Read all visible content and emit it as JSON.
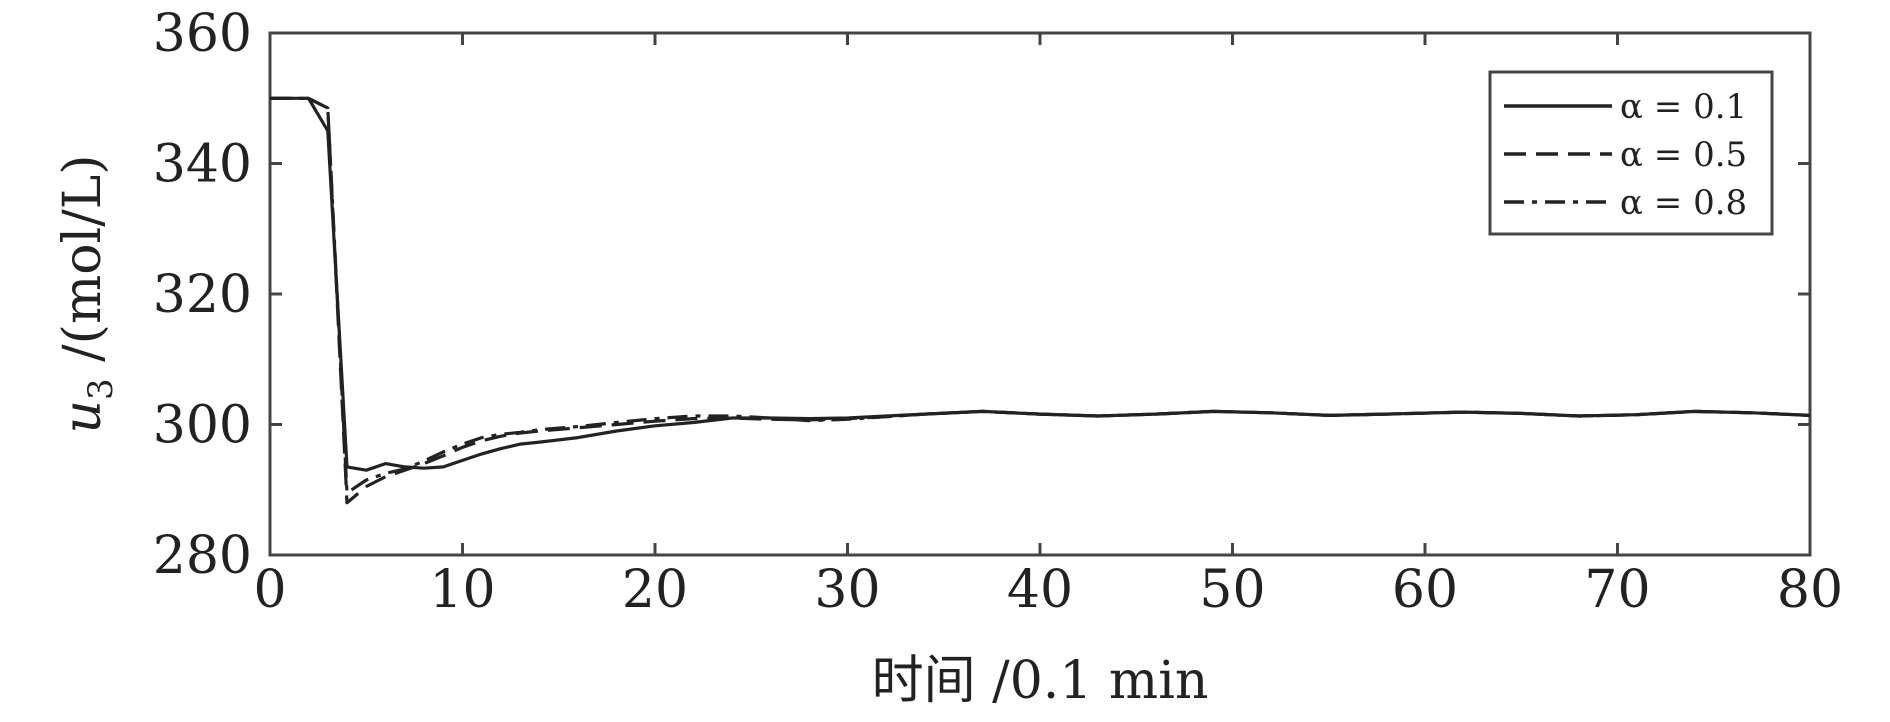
{
  "chart_data": {
    "type": "line",
    "title": "",
    "xlabel": "时间 /0.1 min",
    "ylabel_var": "u",
    "ylabel_sub": "3",
    "ylabel_unit": " /(mol/L)",
    "xlim": [
      0,
      80
    ],
    "ylim": [
      280,
      360
    ],
    "xticks": [
      0,
      10,
      20,
      30,
      40,
      50,
      60,
      70,
      80
    ],
    "yticks": [
      280,
      300,
      320,
      340,
      360
    ],
    "xtick_labels": [
      "0",
      "10",
      "20",
      "30",
      "40",
      "50",
      "60",
      "70",
      "80"
    ],
    "ytick_labels": [
      "280",
      "300",
      "320",
      "340",
      "360"
    ],
    "grid": false,
    "legend_position": "top-right",
    "series": [
      {
        "name": "α = 0.1",
        "style": "solid",
        "x": [
          0,
          1,
          2,
          3,
          4,
          5,
          6,
          7,
          8,
          9,
          10,
          11,
          12,
          13,
          14,
          16,
          18,
          20,
          22,
          24,
          26,
          28,
          30,
          32,
          34,
          37,
          40,
          43,
          46,
          49,
          52,
          55,
          58,
          62,
          65,
          68,
          71,
          74,
          77,
          80
        ],
        "y": [
          350,
          350,
          350,
          345,
          293.5,
          293,
          294,
          293.5,
          293.3,
          293.5,
          294.5,
          295.5,
          296.3,
          297,
          297.3,
          298,
          299,
          299.8,
          300.3,
          301,
          301,
          300.9,
          301,
          301.3,
          301.6,
          302,
          301.6,
          301.3,
          301.6,
          302,
          301.8,
          301.4,
          301.6,
          301.9,
          301.7,
          301.3,
          301.5,
          302,
          301.8,
          301.4
        ]
      },
      {
        "name": "α = 0.5",
        "style": "dashed",
        "x": [
          0,
          1,
          2,
          3,
          4,
          5,
          6,
          7,
          8,
          9,
          10,
          11,
          12,
          13,
          14,
          16,
          18,
          20,
          22,
          24,
          26,
          28,
          30,
          32,
          34,
          37,
          40,
          43,
          46,
          49,
          52,
          55,
          58,
          62,
          65,
          68,
          71,
          74,
          77,
          80
        ],
        "y": [
          350,
          350,
          350,
          348.5,
          288,
          290.5,
          292,
          293,
          294,
          295.2,
          296.5,
          297.5,
          298.2,
          298.7,
          299,
          299.5,
          300,
          300.5,
          300.9,
          301,
          300.8,
          300.7,
          300.9,
          301.2,
          301.6,
          302,
          301.6,
          301.3,
          301.6,
          302,
          301.8,
          301.4,
          301.6,
          301.9,
          301.7,
          301.3,
          301.5,
          302,
          301.8,
          301.4
        ]
      },
      {
        "name": "α = 0.8",
        "style": "dashdot",
        "x": [
          0,
          1,
          2,
          3,
          4,
          5,
          6,
          7,
          8,
          9,
          10,
          11,
          12,
          13,
          14,
          16,
          18,
          20,
          22,
          24,
          26,
          28,
          30,
          32,
          34,
          37,
          40,
          43,
          46,
          49,
          52,
          55,
          58,
          62,
          65,
          68,
          71,
          74,
          77,
          80
        ],
        "y": [
          350,
          350,
          350,
          348.5,
          289.5,
          291.5,
          292.5,
          293.2,
          294.4,
          295.8,
          297,
          298,
          298.5,
          298.8,
          299.2,
          299.7,
          300.3,
          300.9,
          301.3,
          301.3,
          301,
          300.6,
          300.8,
          301.2,
          301.6,
          302,
          301.6,
          301.3,
          301.6,
          302,
          301.8,
          301.4,
          301.6,
          301.9,
          301.7,
          301.3,
          301.5,
          302,
          301.8,
          301.4
        ]
      }
    ]
  }
}
